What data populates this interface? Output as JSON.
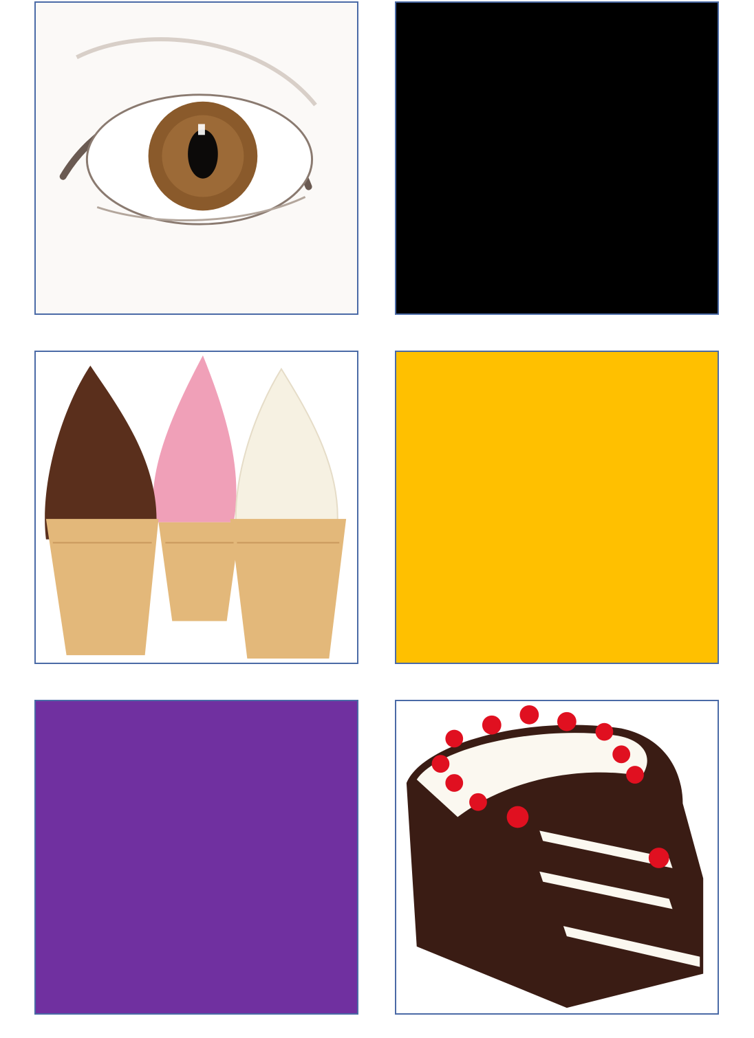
{
  "cards": [
    {
      "kind": "photo",
      "subject": "eye-icon"
    },
    {
      "kind": "swatch",
      "color": "#000000"
    },
    {
      "kind": "photo",
      "subject": "ice-cream-cones-icon"
    },
    {
      "kind": "swatch",
      "color": "#FFC000"
    },
    {
      "kind": "swatch",
      "color": "#7030A0"
    },
    {
      "kind": "photo",
      "subject": "black-forest-cake-icon"
    }
  ],
  "colors": {
    "border": "#4a6aa6",
    "iris": "#8a5a2b",
    "chocolate": "#5a2f1c",
    "strawberry": "#f0a0b8",
    "vanilla": "#f6f1e2",
    "cone": "#e3b87a",
    "cherry": "#e01020",
    "cream": "#fbf8f0",
    "cake": "#3a1c14"
  }
}
